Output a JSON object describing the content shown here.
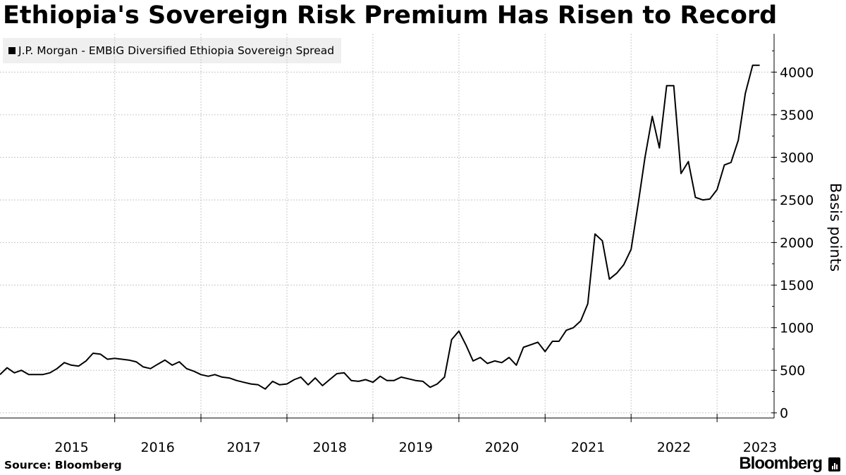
{
  "title": "Ethiopia's Sovereign Risk Premium Has Risen to Record",
  "legend": {
    "label": "J.P. Morgan - EMBIG Diversified Ethiopia Sovereign Spread"
  },
  "source": "Source: Bloomberg",
  "brand": "Bloomberg",
  "colors": {
    "line": "#000000",
    "grid": "#c8c8c8",
    "legend_bg": "#efefef"
  },
  "chart_data": {
    "type": "line",
    "title": "Ethiopia's Sovereign Risk Premium Has Risen to Record",
    "ylabel": "Basis points",
    "xlabel": "",
    "x_ticks": [
      "2015",
      "2016",
      "2017",
      "2018",
      "2019",
      "2020",
      "2021",
      "2022",
      "2023"
    ],
    "y_ticks": [
      0,
      500,
      1000,
      1500,
      2000,
      2500,
      3000,
      3500,
      4000
    ],
    "ylim": [
      -60,
      4450
    ],
    "xlim": [
      "2014-09-01",
      "2023-08-31"
    ],
    "grid": true,
    "legend_position": "top-left",
    "y_axis_side": "right",
    "series": [
      {
        "name": "J.P. Morgan - EMBIG Diversified Ethiopia Sovereign Spread",
        "x": [
          "2014-09-01",
          "2014-10-01",
          "2014-11-01",
          "2014-12-01",
          "2015-01-01",
          "2015-02-01",
          "2015-03-01",
          "2015-04-01",
          "2015-05-01",
          "2015-06-01",
          "2015-07-01",
          "2015-08-01",
          "2015-09-01",
          "2015-10-01",
          "2015-11-01",
          "2015-12-01",
          "2016-01-01",
          "2016-02-01",
          "2016-03-01",
          "2016-04-01",
          "2016-05-01",
          "2016-06-01",
          "2016-07-01",
          "2016-08-01",
          "2016-09-01",
          "2016-10-01",
          "2016-11-01",
          "2016-12-01",
          "2017-01-01",
          "2017-02-01",
          "2017-03-01",
          "2017-04-01",
          "2017-05-01",
          "2017-06-01",
          "2017-07-01",
          "2017-08-01",
          "2017-09-01",
          "2017-10-01",
          "2017-11-01",
          "2017-12-01",
          "2018-01-01",
          "2018-02-01",
          "2018-03-01",
          "2018-04-01",
          "2018-05-01",
          "2018-06-01",
          "2018-07-01",
          "2018-08-01",
          "2018-09-01",
          "2018-10-01",
          "2018-11-01",
          "2018-12-01",
          "2019-01-01",
          "2019-02-01",
          "2019-03-01",
          "2019-04-01",
          "2019-05-01",
          "2019-06-01",
          "2019-07-01",
          "2019-08-01",
          "2019-09-01",
          "2019-10-01",
          "2019-11-01",
          "2019-12-01",
          "2020-01-01",
          "2020-02-01",
          "2020-03-01",
          "2020-04-01",
          "2020-05-01",
          "2020-06-01",
          "2020-07-01",
          "2020-08-01",
          "2020-09-01",
          "2020-10-01",
          "2020-11-01",
          "2020-12-01",
          "2021-01-01",
          "2021-02-01",
          "2021-03-01",
          "2021-04-01",
          "2021-05-01",
          "2021-06-01",
          "2021-07-01",
          "2021-08-01",
          "2021-09-01",
          "2021-10-01",
          "2021-11-01",
          "2021-12-01",
          "2022-01-01",
          "2022-02-01",
          "2022-03-01",
          "2022-04-01",
          "2022-05-01",
          "2022-06-01",
          "2022-07-01",
          "2022-08-01",
          "2022-09-01",
          "2022-10-01",
          "2022-11-01",
          "2022-12-01",
          "2023-01-01",
          "2023-02-01",
          "2023-03-01",
          "2023-04-01",
          "2023-05-01",
          "2023-06-01",
          "2023-07-01"
        ],
        "values": [
          450,
          530,
          470,
          500,
          450,
          450,
          450,
          470,
          520,
          590,
          560,
          550,
          610,
          700,
          690,
          630,
          640,
          630,
          620,
          600,
          540,
          520,
          570,
          620,
          560,
          600,
          520,
          490,
          450,
          430,
          450,
          420,
          410,
          380,
          360,
          340,
          330,
          280,
          370,
          330,
          340,
          390,
          420,
          330,
          410,
          320,
          390,
          460,
          470,
          380,
          370,
          390,
          360,
          430,
          380,
          380,
          420,
          400,
          380,
          370,
          300,
          340,
          420,
          860,
          960,
          790,
          610,
          650,
          580,
          610,
          590,
          650,
          560,
          770,
          800,
          830,
          720,
          840,
          840,
          970,
          1000,
          1080,
          1280,
          2100,
          2020,
          1570,
          1640,
          1740,
          1920,
          2470,
          3000,
          3480,
          3110,
          3840,
          3840,
          2810,
          2950,
          2530,
          2500,
          2510,
          2620,
          2910,
          2940,
          3200,
          3750,
          4080,
          4080
        ]
      }
    ]
  }
}
